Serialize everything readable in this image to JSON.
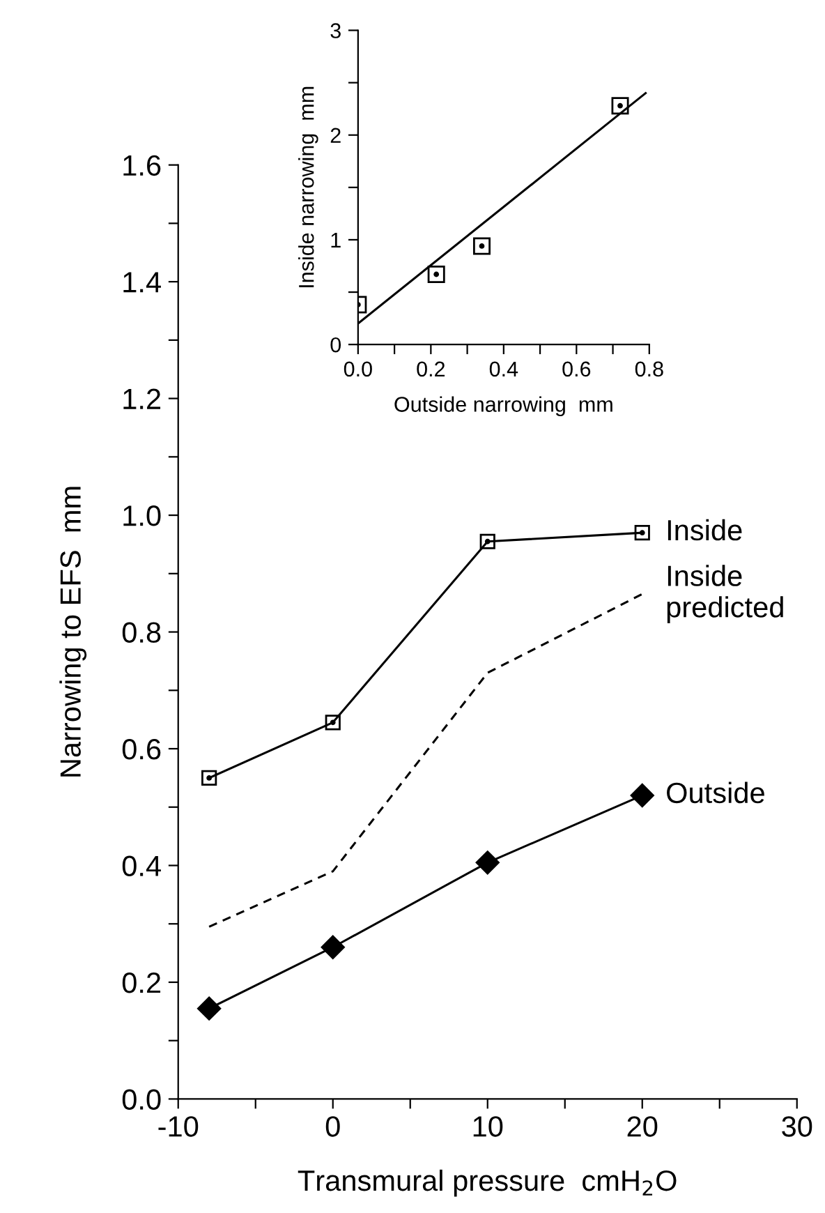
{
  "chart_data": [
    {
      "type": "line",
      "xlabel": "Transmural pressure  cmH$_{2}$O",
      "ylabel": "Narrowing to EFS  mm",
      "x": [
        -8,
        0,
        10,
        20
      ],
      "series": [
        {
          "name": "Inside",
          "color": "#000000",
          "values": [
            0.55,
            0.645,
            0.955,
            0.97
          ],
          "marker": "square",
          "line_style": "solid"
        },
        {
          "name": "Inside\npredicted",
          "color": "#000000",
          "values": [
            0.295,
            0.39,
            0.73,
            0.865
          ],
          "marker": "none",
          "line_style": "dashed"
        },
        {
          "name": "Outside",
          "color": "#000000",
          "values": [
            0.155,
            0.26,
            0.405,
            0.52
          ],
          "marker": "diamond",
          "line_style": "solid"
        }
      ],
      "xlim": [
        -10,
        30
      ],
      "ylim": [
        0,
        1.6
      ],
      "xticks": [
        -10,
        {
          "value": -5,
          "label": null
        },
        0,
        {
          "value": 5,
          "label": null
        },
        10,
        {
          "value": 15,
          "label": null
        },
        20,
        {
          "value": 25,
          "label": null
        },
        30
      ],
      "yticks": [
        "0.0",
        {
          "value": 0.1,
          "label": null
        },
        0.2,
        {
          "value": 0.3,
          "label": null
        },
        0.4,
        {
          "value": 0.5,
          "label": null
        },
        0.6,
        {
          "value": 0.7,
          "label": null
        },
        0.8,
        {
          "value": 0.9,
          "label": null
        },
        "1.0",
        {
          "value": 1.1,
          "label": null
        },
        1.2,
        {
          "value": 1.3,
          "label": null
        },
        1.4,
        {
          "value": 1.5,
          "label": null
        },
        1.6
      ],
      "grid": false,
      "legend": false
    },
    {
      "type": "scatter",
      "xlabel": "Outside narrowing  mm",
      "ylabel": "Inside narrowing  mm",
      "x": [
        0,
        0.215,
        0.34,
        0.72
      ],
      "series": [
        {
          "color": "#000000",
          "values": [
            0.38,
            0.67,
            0.94,
            2.28
          ],
          "marker": "square"
        },
        {
          "type": "line",
          "color": "#000000",
          "x": [
            0,
            0.79
          ],
          "values": [
            0.2,
            2.4
          ],
          "marker": "none",
          "line_style": "solid"
        }
      ],
      "xlim": [
        0,
        0.8
      ],
      "ylim": [
        0,
        3
      ],
      "xticks": [
        "0.0",
        {
          "value": 0.1,
          "label": null
        },
        0.2,
        {
          "value": 0.3,
          "label": null
        },
        0.4,
        {
          "value": 0.5,
          "label": null
        },
        0.6,
        {
          "value": 0.7,
          "label": null
        },
        0.8
      ],
      "yticks": [
        0,
        {
          "value": 0.5,
          "label": null
        },
        1,
        {
          "value": 1.5,
          "label": null
        },
        2,
        {
          "value": 2.5,
          "label": null
        },
        3
      ],
      "grid": false,
      "legend": false
    }
  ]
}
